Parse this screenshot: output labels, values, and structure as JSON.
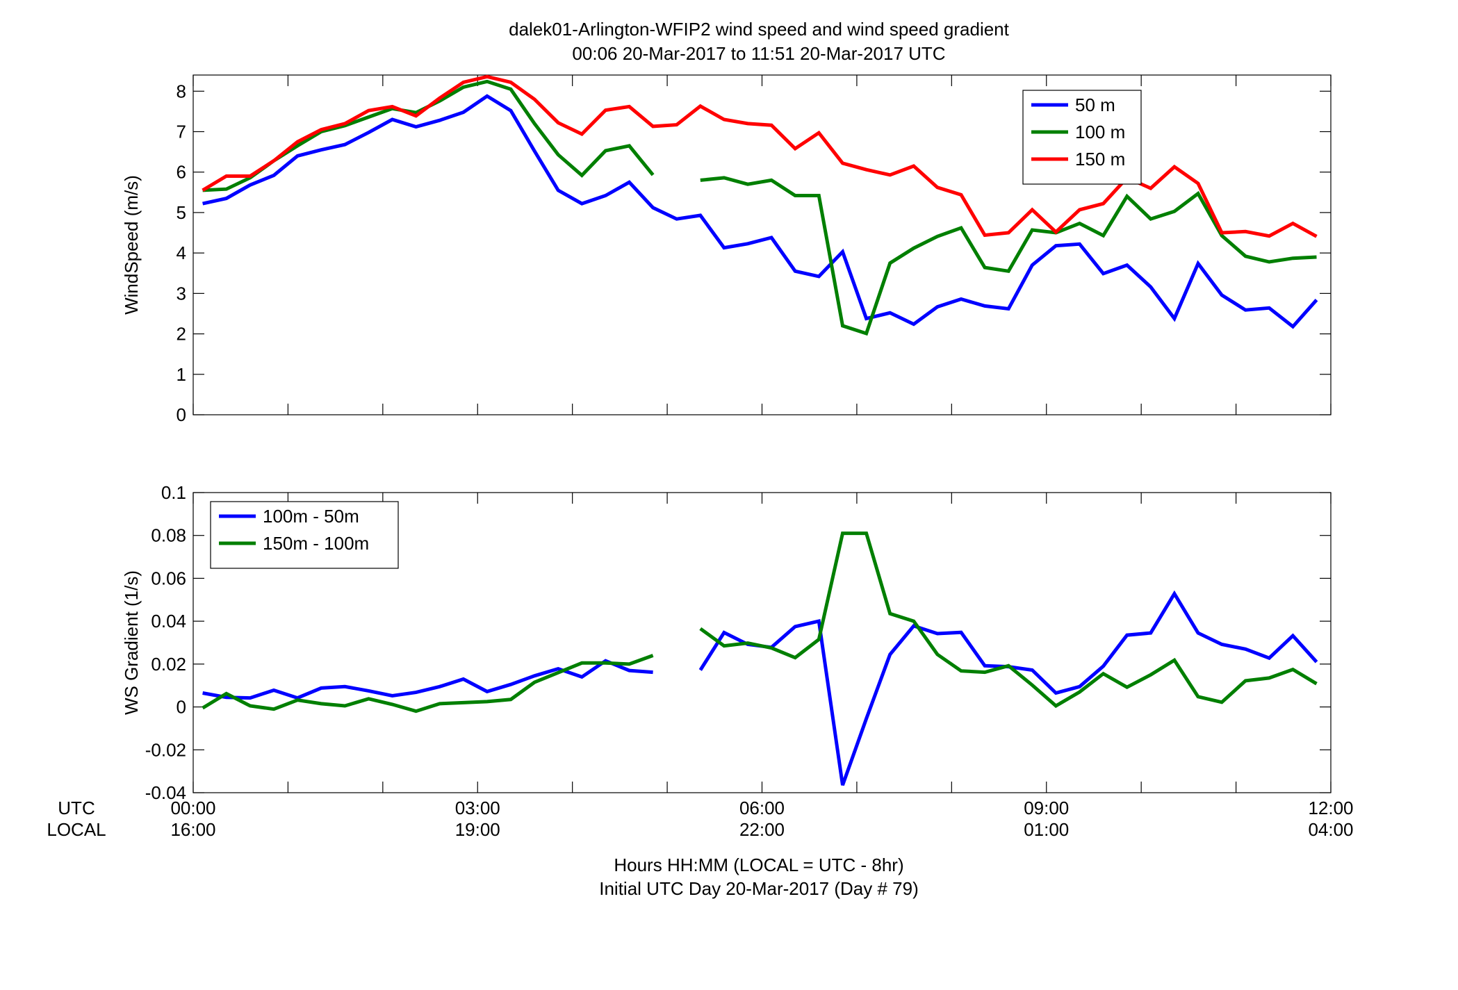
{
  "figure": {
    "title_line1": "dalek01-Arlington-WFIP2  wind speed and wind speed gradient",
    "title_line2": "00:06 20-Mar-2017 to 11:51 20-Mar-2017  UTC",
    "row_label_utc": "UTC",
    "row_label_local": "LOCAL",
    "xlabel_line1": "Hours HH:MM  (LOCAL = UTC - 8hr)",
    "xlabel_line2": "Initial UTC Day 20-Mar-2017 (Day # 79)",
    "xticks_utc": [
      "00:00",
      "03:00",
      "06:00",
      "09:00",
      "12:00"
    ],
    "xticks_local": [
      "16:00",
      "19:00",
      "22:00",
      "01:00",
      "04:00"
    ],
    "colors": {
      "blue": "#0000ff",
      "green": "#007f00",
      "red": "#ff0000"
    }
  },
  "chart_data": [
    {
      "type": "line",
      "title": "",
      "xlabel": "",
      "ylabel": "WindSpeed (m/s)",
      "xlim": [
        0,
        12
      ],
      "ylim": [
        0,
        8.4
      ],
      "yticks": [
        0,
        1,
        2,
        3,
        4,
        5,
        6,
        7,
        8
      ],
      "ytick_labels": [
        "0",
        "1",
        "2",
        "3",
        "4",
        "5",
        "6",
        "7",
        "8"
      ],
      "grid": false,
      "legend": "top-right",
      "x": [
        0.1,
        0.35,
        0.6,
        0.85,
        1.1,
        1.35,
        1.6,
        1.85,
        2.1,
        2.35,
        2.6,
        2.85,
        3.1,
        3.35,
        3.6,
        3.85,
        4.1,
        4.35,
        4.6,
        4.85,
        5.1,
        5.35,
        5.6,
        5.85,
        6.1,
        6.35,
        6.6,
        6.85,
        7.1,
        7.35,
        7.6,
        7.85,
        8.1,
        8.35,
        8.6,
        8.85,
        9.1,
        9.35,
        9.6,
        9.85,
        10.1,
        10.35,
        10.6,
        10.85,
        11.1,
        11.35,
        11.6,
        11.85
      ],
      "series": [
        {
          "name": "50 m",
          "color": "#0000ff",
          "values": [
            5.22,
            5.35,
            5.68,
            5.92,
            6.4,
            6.55,
            6.68,
            6.98,
            7.3,
            7.12,
            7.28,
            7.48,
            7.88,
            7.52,
            6.52,
            5.55,
            5.22,
            5.42,
            5.75,
            5.12,
            4.84,
            4.93,
            4.13,
            4.23,
            4.38,
            3.55,
            3.42,
            4.03,
            2.38,
            2.52,
            2.24,
            2.67,
            2.86,
            2.69,
            2.62,
            3.7,
            4.18,
            4.22,
            3.49,
            3.7,
            3.16,
            2.38,
            3.74,
            2.96,
            2.59,
            2.64,
            2.18,
            2.84
          ]
        },
        {
          "name": "100 m",
          "color": "#007f00",
          "values": [
            5.55,
            5.58,
            5.86,
            6.28,
            6.65,
            7.0,
            7.15,
            7.36,
            7.57,
            7.47,
            7.76,
            8.1,
            8.24,
            8.05,
            7.2,
            6.43,
            5.92,
            6.53,
            6.65,
            5.93,
            null,
            5.8,
            5.86,
            5.7,
            5.8,
            5.42,
            5.42,
            2.2,
            2.01,
            3.75,
            4.12,
            4.41,
            4.62,
            3.64,
            3.55,
            4.57,
            4.5,
            4.73,
            4.43,
            5.4,
            4.84,
            5.03,
            5.47,
            4.43,
            3.92,
            3.78,
            3.87,
            3.9
          ]
        },
        {
          "name": "150 m",
          "color": "#ff0000",
          "values": [
            5.55,
            5.9,
            5.9,
            6.28,
            6.75,
            7.05,
            7.2,
            7.52,
            7.62,
            7.39,
            7.83,
            8.22,
            8.36,
            8.22,
            7.8,
            7.22,
            6.94,
            7.53,
            7.62,
            7.13,
            7.17,
            7.63,
            7.3,
            7.2,
            7.16,
            6.58,
            6.97,
            6.22,
            6.06,
            5.93,
            6.15,
            5.62,
            5.44,
            4.44,
            4.5,
            5.07,
            4.52,
            5.07,
            5.22,
            5.86,
            5.6,
            6.13,
            5.72,
            4.5,
            4.53,
            4.42,
            4.73,
            4.41
          ]
        }
      ]
    },
    {
      "type": "line",
      "title": "",
      "xlabel": "",
      "ylabel": "WS Gradient (1/s)",
      "xlim": [
        0,
        12
      ],
      "ylim": [
        -0.04,
        0.1
      ],
      "yticks": [
        -0.04,
        -0.02,
        0,
        0.02,
        0.04,
        0.06,
        0.08,
        0.1
      ],
      "ytick_labels": [
        "-0.04",
        "-0.02",
        "0",
        "0.02",
        "0.04",
        "0.06",
        "0.08",
        "0.1"
      ],
      "grid": false,
      "legend": "top-left",
      "x": [
        0.1,
        0.35,
        0.6,
        0.85,
        1.1,
        1.35,
        1.6,
        1.85,
        2.1,
        2.35,
        2.6,
        2.85,
        3.1,
        3.35,
        3.6,
        3.85,
        4.1,
        4.35,
        4.6,
        4.85,
        5.1,
        5.35,
        5.6,
        5.85,
        6.1,
        6.35,
        6.6,
        6.85,
        7.1,
        7.35,
        7.6,
        7.85,
        8.1,
        8.35,
        8.6,
        8.85,
        9.1,
        9.35,
        9.6,
        9.85,
        10.1,
        10.35,
        10.6,
        10.85,
        11.1,
        11.35,
        11.6,
        11.85
      ],
      "series": [
        {
          "name": "100m - 50m",
          "color": "#0000ff",
          "values": [
            0.0065,
            0.0045,
            0.0042,
            0.0078,
            0.0042,
            0.0088,
            0.0095,
            0.0075,
            0.0052,
            0.0068,
            0.0095,
            0.013,
            0.0072,
            0.0105,
            0.0145,
            0.0178,
            0.014,
            0.0215,
            0.017,
            0.0162,
            null,
            0.0172,
            0.0347,
            0.0292,
            0.0278,
            0.0375,
            0.04,
            -0.0365,
            -0.0055,
            0.0245,
            0.0378,
            0.0342,
            0.0348,
            0.0192,
            0.0188,
            0.0172,
            0.0065,
            0.0095,
            0.019,
            0.0335,
            0.0345,
            0.0528,
            0.0345,
            0.0292,
            0.027,
            0.0228,
            0.0332,
            0.021
          ]
        },
        {
          "name": "150m - 100m",
          "color": "#007f00",
          "values": [
            -0.0005,
            0.0062,
            0.0005,
            -0.001,
            0.0032,
            0.0015,
            0.0005,
            0.0038,
            0.0012,
            -0.002,
            0.0015,
            0.002,
            0.0025,
            0.0035,
            0.0115,
            0.016,
            0.0205,
            0.0205,
            0.02,
            0.024,
            null,
            0.0365,
            0.0285,
            0.0298,
            0.0275,
            0.023,
            0.0315,
            0.081,
            0.081,
            0.0435,
            0.04,
            0.0245,
            0.0168,
            0.0162,
            0.0192,
            0.0102,
            0.0005,
            0.007,
            0.0155,
            0.0092,
            0.015,
            0.0218,
            0.0048,
            0.0022,
            0.0122,
            0.0135,
            0.0175,
            0.0108
          ]
        }
      ]
    }
  ]
}
